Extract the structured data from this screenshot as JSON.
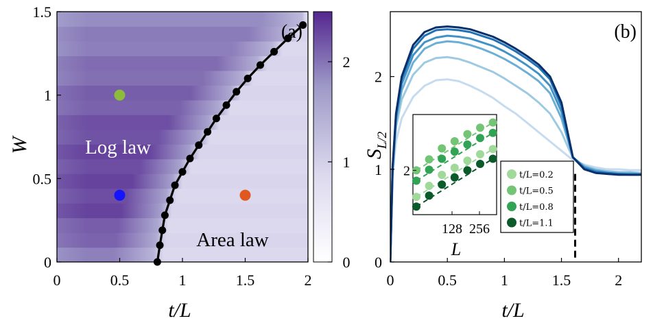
{
  "chart_data": [
    {
      "panel": "(a)",
      "type": "heatmap",
      "xlabel": "t/L",
      "ylabel": "W",
      "xlim": [
        0,
        2
      ],
      "ylim": [
        0,
        1.5
      ],
      "xticks": [
        "0",
        "0.5",
        "1",
        "1.5",
        "2"
      ],
      "yticks": [
        "0",
        "0.5",
        "1",
        "1.5"
      ],
      "colorbar": {
        "ticks": [
          "0",
          "1",
          "2"
        ],
        "range": [
          0,
          2.5
        ],
        "low_color": "#ffffff",
        "high_color": "#54278f"
      },
      "annotations": [
        "Log law",
        "Area law"
      ],
      "boundary": {
        "t_over_L": [
          0.8,
          0.82,
          0.84,
          0.86,
          0.9,
          0.94,
          1.0,
          1.06,
          1.13,
          1.2,
          1.27,
          1.35,
          1.43,
          1.52,
          1.62,
          1.73,
          1.84,
          1.96
        ],
        "W": [
          0.0,
          0.1,
          0.19,
          0.28,
          0.37,
          0.46,
          0.54,
          0.62,
          0.7,
          0.78,
          0.86,
          0.94,
          1.02,
          1.1,
          1.18,
          1.26,
          1.34,
          1.42
        ]
      },
      "markers": [
        {
          "t_over_L": 0.5,
          "W": 1.0,
          "color": "#8dbb3a"
        },
        {
          "t_over_L": 0.5,
          "W": 0.4,
          "color": "#1414ff"
        },
        {
          "t_over_L": 1.5,
          "W": 0.4,
          "color": "#e0581f"
        }
      ]
    },
    {
      "panel": "(b)",
      "type": "line",
      "xlabel": "t/L",
      "ylabel": "S_{L/2}",
      "xlim": [
        0,
        2.2
      ],
      "ylim": [
        0,
        2.7
      ],
      "xticks": [
        "0",
        "0.5",
        "1",
        "1.5",
        "2"
      ],
      "yticks": [
        "0",
        "1",
        "2"
      ],
      "vline_x": 1.62,
      "series": [
        {
          "color": "#c6dbef",
          "x": [
            0,
            0.02,
            0.05,
            0.1,
            0.2,
            0.3,
            0.4,
            0.5,
            0.6,
            0.7,
            0.8,
            0.9,
            1.0,
            1.1,
            1.2,
            1.3,
            1.4,
            1.5,
            1.6,
            1.7,
            1.8,
            1.9,
            2.0,
            2.1,
            2.2
          ],
          "y": [
            0,
            0.9,
            1.3,
            1.55,
            1.78,
            1.9,
            1.96,
            1.97,
            1.95,
            1.9,
            1.84,
            1.77,
            1.68,
            1.6,
            1.5,
            1.4,
            1.3,
            1.2,
            1.1,
            1.05,
            1.02,
            1.0,
            1.0,
            0.99,
            0.99
          ]
        },
        {
          "color": "#9ecae1",
          "x": [
            0,
            0.02,
            0.05,
            0.1,
            0.2,
            0.3,
            0.4,
            0.5,
            0.6,
            0.7,
            0.8,
            0.9,
            1.0,
            1.1,
            1.2,
            1.3,
            1.4,
            1.5,
            1.6,
            1.7,
            1.8,
            1.9,
            2.0,
            2.1,
            2.2
          ],
          "y": [
            0,
            0.95,
            1.45,
            1.75,
            2.02,
            2.15,
            2.2,
            2.21,
            2.19,
            2.15,
            2.1,
            2.05,
            1.98,
            1.9,
            1.82,
            1.72,
            1.6,
            1.4,
            1.12,
            1.04,
            1.0,
            0.98,
            0.97,
            0.97,
            0.96
          ]
        },
        {
          "color": "#6baed6",
          "x": [
            0,
            0.02,
            0.05,
            0.1,
            0.2,
            0.3,
            0.4,
            0.5,
            0.6,
            0.7,
            0.8,
            0.9,
            1.0,
            1.1,
            1.2,
            1.3,
            1.4,
            1.5,
            1.6,
            1.7,
            1.8,
            1.9,
            2.0,
            2.1,
            2.2
          ],
          "y": [
            0,
            0.98,
            1.5,
            1.85,
            2.15,
            2.3,
            2.36,
            2.38,
            2.37,
            2.34,
            2.3,
            2.25,
            2.19,
            2.12,
            2.04,
            1.95,
            1.82,
            1.55,
            1.13,
            1.03,
            0.99,
            0.97,
            0.96,
            0.96,
            0.95
          ]
        },
        {
          "color": "#4292c6",
          "x": [
            0,
            0.02,
            0.05,
            0.1,
            0.2,
            0.3,
            0.4,
            0.5,
            0.6,
            0.7,
            0.8,
            0.9,
            1.0,
            1.1,
            1.2,
            1.3,
            1.4,
            1.5,
            1.6,
            1.7,
            1.8,
            1.9,
            2.0,
            2.1,
            2.2
          ],
          "y": [
            0,
            1.0,
            1.55,
            1.92,
            2.23,
            2.37,
            2.42,
            2.44,
            2.43,
            2.41,
            2.37,
            2.33,
            2.27,
            2.2,
            2.12,
            2.03,
            1.9,
            1.62,
            1.13,
            1.02,
            0.98,
            0.96,
            0.95,
            0.95,
            0.95
          ]
        },
        {
          "color": "#2171b5",
          "x": [
            0,
            0.02,
            0.05,
            0.1,
            0.2,
            0.3,
            0.4,
            0.5,
            0.6,
            0.7,
            0.8,
            0.9,
            1.0,
            1.1,
            1.2,
            1.3,
            1.4,
            1.5,
            1.6,
            1.7,
            1.8,
            1.9,
            2.0,
            2.1,
            2.2
          ],
          "y": [
            0,
            1.0,
            1.58,
            1.97,
            2.3,
            2.44,
            2.5,
            2.51,
            2.5,
            2.48,
            2.44,
            2.4,
            2.34,
            2.27,
            2.19,
            2.1,
            1.97,
            1.68,
            1.13,
            1.01,
            0.97,
            0.96,
            0.95,
            0.94,
            0.94
          ]
        },
        {
          "color": "#08306b",
          "x": [
            0,
            0.02,
            0.05,
            0.1,
            0.2,
            0.3,
            0.4,
            0.5,
            0.6,
            0.7,
            0.8,
            0.9,
            1.0,
            1.1,
            1.2,
            1.3,
            1.4,
            1.5,
            1.6,
            1.7,
            1.8,
            1.9,
            2.0,
            2.1,
            2.2
          ],
          "y": [
            0,
            1.02,
            1.6,
            2.0,
            2.34,
            2.48,
            2.53,
            2.54,
            2.53,
            2.51,
            2.47,
            2.43,
            2.37,
            2.3,
            2.22,
            2.13,
            2.0,
            1.72,
            1.13,
            1.0,
            0.96,
            0.95,
            0.94,
            0.94,
            0.94
          ]
        }
      ],
      "inset": {
        "xlabel": "L",
        "xticks": [
          "128",
          "256"
        ],
        "yticks": [
          "2"
        ],
        "legend_position": "bottom-right",
        "series": [
          {
            "name": "t/L=0.2",
            "color": "#a1d99b",
            "values": [
              0.69,
              0.86,
              1.03,
              1.14,
              1.25,
              1.35,
              1.43
            ]
          },
          {
            "name": "t/L=0.5",
            "color": "#74c476",
            "values": [
              1.1,
              1.27,
              1.44,
              1.55,
              1.66,
              1.76,
              1.84
            ]
          },
          {
            "name": "t/L=0.8",
            "color": "#31a354",
            "values": [
              0.94,
              1.11,
              1.28,
              1.39,
              1.5,
              1.6,
              1.68
            ]
          },
          {
            "name": "t/L=1.1",
            "color": "#0b5a2a",
            "values": [
              0.54,
              0.71,
              0.88,
              0.99,
              1.1,
              1.2,
              1.28
            ]
          }
        ]
      }
    }
  ]
}
